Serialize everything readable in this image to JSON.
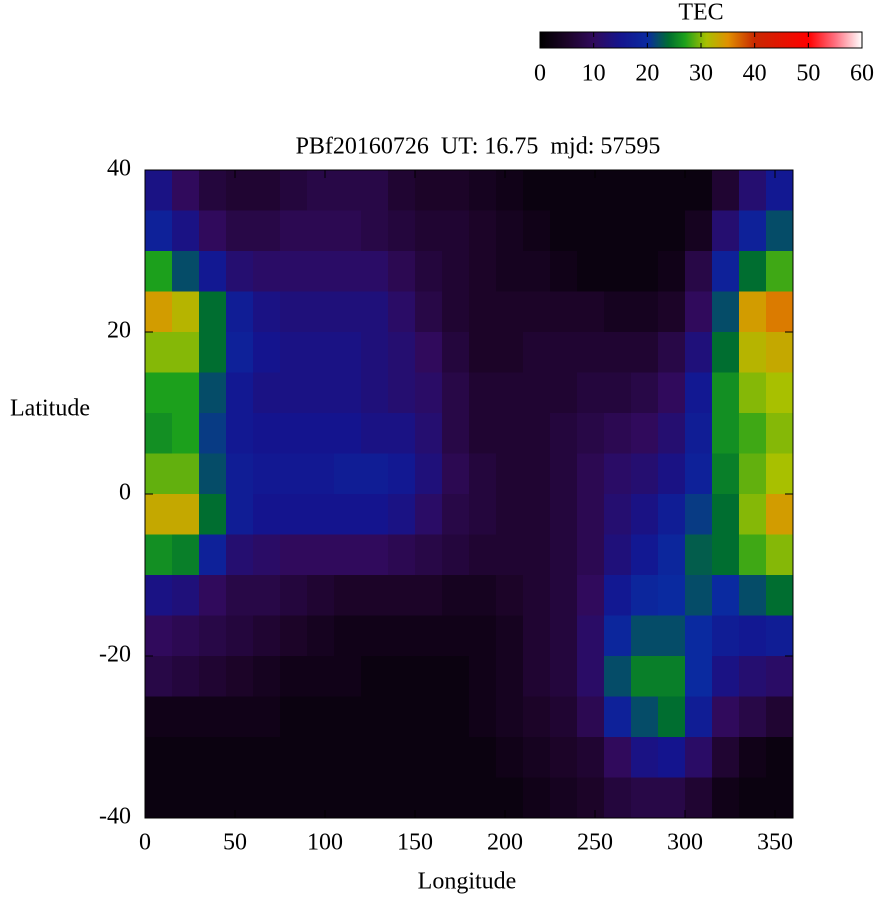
{
  "chart_data": {
    "type": "heatmap",
    "title": "PBf20160726  UT: 16.75  mjd: 57595",
    "xlabel": "Longitude",
    "ylabel": "Latitude",
    "xlim": [
      0,
      360
    ],
    "xticks": [
      0,
      50,
      100,
      150,
      200,
      250,
      300,
      350
    ],
    "ylim": [
      -40,
      40
    ],
    "yticks": [
      -40,
      -20,
      0,
      20,
      40
    ],
    "colorbar": {
      "label": "TEC",
      "clim": [
        0,
        60
      ],
      "ticks": [
        0,
        10,
        20,
        30,
        40,
        50,
        60
      ]
    },
    "colorscale": [
      {
        "value": 0,
        "color": "#000000"
      },
      {
        "value": 5,
        "color": "#1c0428"
      },
      {
        "value": 10,
        "color": "#300a5c"
      },
      {
        "value": 15,
        "color": "#14148e"
      },
      {
        "value": 20,
        "color": "#0a2aa0"
      },
      {
        "value": 24,
        "color": "#006e30"
      },
      {
        "value": 27,
        "color": "#1ca01c"
      },
      {
        "value": 31,
        "color": "#a8c000"
      },
      {
        "value": 35,
        "color": "#e09000"
      },
      {
        "value": 40,
        "color": "#c82800"
      },
      {
        "value": 50,
        "color": "#ff0000"
      },
      {
        "value": 55,
        "color": "#ff7080"
      },
      {
        "value": 60,
        "color": "#ffffff"
      }
    ],
    "x": [
      7.5,
      22.5,
      37.5,
      52.5,
      67.5,
      82.5,
      97.5,
      112.5,
      127.5,
      142.5,
      157.5,
      172.5,
      187.5,
      202.5,
      217.5,
      232.5,
      247.5,
      262.5,
      277.5,
      292.5,
      307.5,
      322.5,
      337.5,
      352.5
    ],
    "y": [
      37.5,
      32.5,
      27.5,
      22.5,
      17.5,
      12.5,
      7.5,
      2.5,
      -2.5,
      -7.5,
      -12.5,
      -17.5,
      -22.5,
      -27.5,
      -32.5,
      -37.5
    ],
    "z": [
      [
        14,
        10,
        7,
        6,
        6,
        7,
        8,
        8,
        8,
        6,
        5,
        5,
        4,
        3,
        2,
        2,
        2,
        2,
        2,
        2,
        2,
        6,
        12,
        16
      ],
      [
        18,
        14,
        10,
        8,
        8,
        9,
        9,
        9,
        8,
        7,
        6,
        6,
        5,
        4,
        3,
        2,
        2,
        2,
        2,
        2,
        4,
        12,
        18,
        22
      ],
      [
        27,
        22,
        16,
        12,
        11,
        11,
        11,
        11,
        11,
        9,
        7,
        6,
        5,
        4,
        4,
        3,
        2,
        2,
        2,
        3,
        8,
        18,
        24,
        28
      ],
      [
        34,
        32,
        24,
        17,
        14,
        13,
        13,
        13,
        13,
        11,
        8,
        6,
        5,
        5,
        5,
        5,
        5,
        4,
        4,
        5,
        10,
        22,
        34,
        36
      ],
      [
        30,
        30,
        24,
        18,
        15,
        14,
        14,
        14,
        13,
        12,
        10,
        7,
        5,
        5,
        6,
        6,
        6,
        6,
        6,
        8,
        13,
        24,
        32,
        33
      ],
      [
        27,
        27,
        22,
        16,
        14,
        14,
        14,
        14,
        13,
        12,
        11,
        8,
        6,
        6,
        6,
        6,
        7,
        7,
        8,
        10,
        16,
        26,
        30,
        31
      ],
      [
        26,
        27,
        21,
        16,
        15,
        15,
        15,
        15,
        14,
        14,
        12,
        8,
        6,
        6,
        6,
        7,
        8,
        9,
        10,
        12,
        17,
        26,
        28,
        30
      ],
      [
        29,
        29,
        22,
        17,
        16,
        16,
        16,
        17,
        17,
        16,
        13,
        9,
        7,
        6,
        6,
        7,
        9,
        11,
        12,
        14,
        18,
        25,
        29,
        31
      ],
      [
        33,
        33,
        24,
        17,
        15,
        15,
        15,
        15,
        15,
        14,
        11,
        8,
        7,
        6,
        6,
        7,
        9,
        12,
        14,
        17,
        21,
        24,
        30,
        34
      ],
      [
        26,
        25,
        18,
        12,
        11,
        10,
        10,
        10,
        10,
        9,
        8,
        7,
        6,
        6,
        6,
        7,
        9,
        13,
        16,
        19,
        23,
        24,
        28,
        30
      ],
      [
        14,
        13,
        10,
        8,
        8,
        7,
        6,
        5,
        5,
        5,
        5,
        4,
        4,
        5,
        6,
        7,
        10,
        16,
        19,
        20,
        22,
        20,
        22,
        24
      ],
      [
        10,
        9,
        8,
        7,
        6,
        5,
        4,
        3,
        3,
        3,
        3,
        3,
        3,
        4,
        6,
        7,
        11,
        19,
        22,
        22,
        20,
        17,
        16,
        17
      ],
      [
        8,
        7,
        6,
        5,
        4,
        3,
        3,
        3,
        2,
        2,
        2,
        2,
        3,
        4,
        6,
        7,
        11,
        22,
        25,
        25,
        20,
        14,
        12,
        11
      ],
      [
        3,
        3,
        3,
        3,
        3,
        2,
        2,
        2,
        2,
        2,
        2,
        2,
        3,
        4,
        5,
        6,
        9,
        18,
        22,
        24,
        17,
        10,
        8,
        6
      ],
      [
        2,
        2,
        2,
        2,
        2,
        2,
        2,
        2,
        2,
        2,
        2,
        2,
        2,
        3,
        4,
        5,
        6,
        10,
        14,
        15,
        11,
        6,
        3,
        2
      ],
      [
        2,
        2,
        2,
        2,
        2,
        2,
        2,
        2,
        2,
        2,
        2,
        2,
        2,
        2,
        3,
        4,
        5,
        7,
        8,
        8,
        6,
        3,
        2,
        2
      ]
    ]
  }
}
